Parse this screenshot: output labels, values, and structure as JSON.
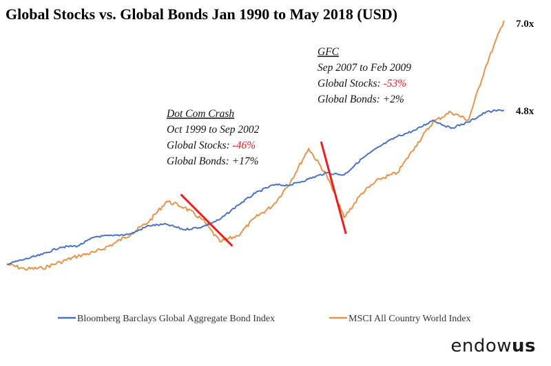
{
  "chart_data": {
    "type": "line",
    "title": "Global Stocks vs. Global Bonds Jan 1990 to May 2018 (USD)",
    "x_range": [
      "Jan 1990",
      "May 2018"
    ],
    "series": [
      {
        "name": "Bloomberg Barclays Global Aggregate Bond Index",
        "color": "#4a72c4",
        "end_label": "4.8x",
        "points": [
          [
            "1990",
            1.0
          ],
          [
            "1991",
            1.12
          ],
          [
            "1992",
            1.24
          ],
          [
            "1993",
            1.42
          ],
          [
            "1994",
            1.45
          ],
          [
            "1995",
            1.68
          ],
          [
            "1996",
            1.7
          ],
          [
            "1997",
            1.75
          ],
          [
            "1998",
            1.95
          ],
          [
            "1999",
            1.98
          ],
          [
            "2000",
            1.85
          ],
          [
            "2001",
            1.92
          ],
          [
            "2002",
            2.1
          ],
          [
            "2003",
            2.45
          ],
          [
            "2004",
            2.75
          ],
          [
            "2005",
            2.95
          ],
          [
            "2006",
            2.95
          ],
          [
            "2007",
            3.1
          ],
          [
            "2008",
            3.25
          ],
          [
            "2009",
            3.2
          ],
          [
            "2010",
            3.6
          ],
          [
            "2011",
            3.9
          ],
          [
            "2012",
            4.15
          ],
          [
            "2013",
            4.3
          ],
          [
            "2014",
            4.55
          ],
          [
            "2015",
            4.35
          ],
          [
            "2016",
            4.5
          ],
          [
            "2017",
            4.75
          ],
          [
            "2018",
            4.8
          ]
        ]
      },
      {
        "name": "MSCI All Country World Index",
        "color": "#e8924a",
        "end_label": "7.0x",
        "points": [
          [
            "1990",
            1.0
          ],
          [
            "1991",
            0.88
          ],
          [
            "1992",
            0.9
          ],
          [
            "1993",
            1.05
          ],
          [
            "1994",
            1.2
          ],
          [
            "1995",
            1.3
          ],
          [
            "1996",
            1.5
          ],
          [
            "1997",
            1.75
          ],
          [
            "1998",
            2.05
          ],
          [
            "1999",
            2.55
          ],
          [
            "2000",
            2.4
          ],
          [
            "2001",
            2.1
          ],
          [
            "2002",
            1.55
          ],
          [
            "2003",
            1.7
          ],
          [
            "2004",
            2.15
          ],
          [
            "2005",
            2.45
          ],
          [
            "2006",
            3.05
          ],
          [
            "2007",
            3.85
          ],
          [
            "2008",
            3.2
          ],
          [
            "2009",
            2.15
          ],
          [
            "2010",
            2.75
          ],
          [
            "2011",
            3.1
          ],
          [
            "2012",
            3.25
          ],
          [
            "2013",
            3.9
          ],
          [
            "2014",
            4.5
          ],
          [
            "2015",
            4.75
          ],
          [
            "2016",
            4.55
          ],
          [
            "2017",
            5.9
          ],
          [
            "2018",
            7.0
          ]
        ]
      }
    ],
    "annotations": [
      {
        "id": "dotcom",
        "heading": "Dot Com Crash",
        "period": "Oct 1999 to Sep 2002",
        "stocks_label": "Global Stocks: ",
        "stocks_value": "-46%",
        "bonds_label": "Global Bonds: +17%",
        "marker_from": [
          "1999.8",
          2.55
        ],
        "marker_to": [
          "2002.7",
          1.55
        ]
      },
      {
        "id": "gfc",
        "heading": "GFC",
        "period": "Sep 2007 to Feb 2009",
        "stocks_label": "Global Stocks: ",
        "stocks_value": "-53%",
        "bonds_label": "Global Bonds: +2%",
        "marker_from": [
          "2007.7",
          3.85
        ],
        "marker_to": [
          "2009.1",
          1.85
        ]
      }
    ],
    "legend_position": "bottom",
    "marker_color": "#ee1c1c",
    "grid": false,
    "axes_visible": false
  },
  "brand": {
    "part1": "endow",
    "part2": "us"
  }
}
